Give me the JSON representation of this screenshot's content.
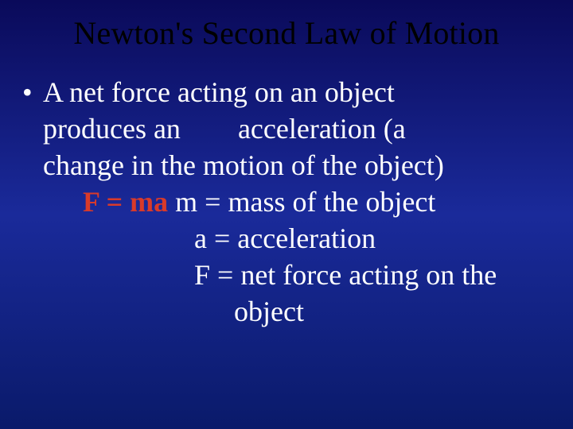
{
  "colors": {
    "background_gradient_top": "#0a0a5a",
    "background_gradient_mid": "#1a2a9a",
    "background_gradient_bottom": "#0a1a6a",
    "title_color": "#000000",
    "body_text_color": "#ffffff",
    "formula_color": "#d83a2a"
  },
  "typography": {
    "font_family": "Times New Roman",
    "title_fontsize_pt": 30,
    "body_fontsize_pt": 27,
    "formula_bold": true
  },
  "slide": {
    "title": "Newton's Second Law of Motion",
    "bullet": {
      "marker": "•",
      "line1": "A net force acting on an object",
      "line2a": "produces an",
      "line2b": "acceleration (a",
      "line3": "change in the motion of the object)",
      "line4_formula": "F = ma",
      "line4_rest": "  m = mass of the object",
      "line5": "a = acceleration",
      "line6": "F = net force acting on the",
      "line7": "object"
    }
  }
}
